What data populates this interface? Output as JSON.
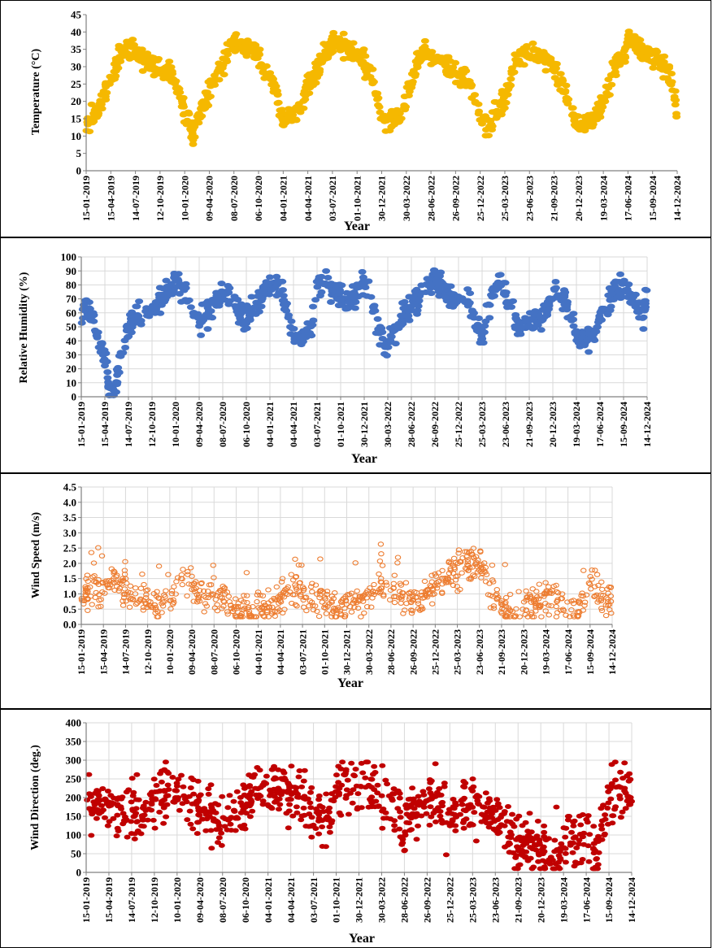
{
  "chart_data": [
    {
      "type": "scatter",
      "ylabel": "Temperature (°C)",
      "xlabel": "Year",
      "ylim": [
        0,
        45
      ],
      "yticks": [
        0,
        5,
        10,
        15,
        20,
        25,
        30,
        35,
        40,
        45
      ],
      "xlim": [
        "2019-01-15",
        "2024-12-14"
      ],
      "xtick_labels": [
        "15-01-2019",
        "15-04-2019",
        "14-07-2019",
        "12-10-2019",
        "10-01-2020",
        "09-04-2020",
        "08-07-2020",
        "06-10-2020",
        "04-01-2021",
        "04-04-2021",
        "03-07-2021",
        "01-10-2021",
        "30-12-2021",
        "30-03-2022",
        "28-06-2022",
        "26-09-2022",
        "25-12-2022",
        "25-03-2023",
        "23-06-2023",
        "21-09-2023",
        "20-12-2023",
        "19-03-2024",
        "17-06-2024",
        "15-09-2024",
        "14-12-2024"
      ],
      "grid": false,
      "color": "#f5b800",
      "series": [
        {
          "x": [
            "2019-01-15",
            "2019-03-01",
            "2019-04-15",
            "2019-05-20",
            "2019-06-15",
            "2019-07-14",
            "2019-08-15",
            "2019-09-15",
            "2019-10-12",
            "2019-11-15",
            "2019-12-15",
            "2020-01-10",
            "2020-02-10",
            "2020-03-10",
            "2020-04-09",
            "2020-05-15",
            "2020-06-15",
            "2020-07-08",
            "2020-08-10",
            "2020-09-10",
            "2020-10-06",
            "2020-11-05",
            "2020-12-05",
            "2021-01-04",
            "2021-02-15",
            "2021-03-15",
            "2021-04-04",
            "2021-05-10",
            "2021-06-10",
            "2021-07-03",
            "2021-08-05",
            "2021-09-05",
            "2021-10-01",
            "2021-11-01",
            "2021-12-01",
            "2021-12-30",
            "2022-02-01",
            "2022-03-01",
            "2022-03-30",
            "2022-05-01",
            "2022-06-01",
            "2022-06-28",
            "2022-08-01",
            "2022-09-01",
            "2022-09-26",
            "2022-11-01",
            "2022-12-01",
            "2022-12-25",
            "2023-02-01",
            "2023-03-01",
            "2023-03-25",
            "2023-05-01",
            "2023-06-01",
            "2023-06-23",
            "2023-08-01",
            "2023-09-01",
            "2023-09-21",
            "2023-11-01",
            "2023-12-01",
            "2023-12-20",
            "2024-02-01",
            "2024-03-01",
            "2024-03-19",
            "2024-05-01",
            "2024-06-01",
            "2024-06-17",
            "2024-08-01",
            "2024-09-01",
            "2024-09-15",
            "2024-11-01",
            "2024-12-01",
            "2024-12-14"
          ],
          "values": [
            14,
            18,
            26,
            33,
            36,
            34,
            32,
            31,
            30,
            28,
            24,
            17,
            10,
            18,
            22,
            29,
            34,
            37,
            36,
            35,
            33,
            28,
            25,
            14,
            16,
            20,
            24,
            30,
            34,
            37,
            36,
            35,
            33,
            31,
            27,
            15,
            14,
            15,
            20,
            30,
            34,
            33,
            31,
            30,
            29,
            27,
            23,
            15,
            13,
            18,
            20,
            31,
            34,
            34,
            33,
            32,
            29,
            22,
            16,
            13,
            14,
            17,
            20,
            30,
            34,
            38,
            35,
            33,
            33,
            30,
            24,
            14
          ]
        }
      ]
    },
    {
      "type": "scatter",
      "ylabel": "Relative Humidity (%)",
      "xlabel": "Year",
      "ylim": [
        0,
        100
      ],
      "yticks": [
        0,
        10,
        20,
        30,
        40,
        50,
        60,
        70,
        80,
        90,
        100
      ],
      "xlim": [
        "2019-01-15",
        "2024-12-14"
      ],
      "xtick_labels": [
        "15-01-2019",
        "15-04-2019",
        "14-07-2019",
        "12-10-2019",
        "10-01-2020",
        "09-04-2020",
        "08-07-2020",
        "06-10-2020",
        "04-01-2021",
        "04-04-2021",
        "03-07-2021",
        "01-10-2021",
        "30-12-2021",
        "30-03-2022",
        "28-06-2022",
        "26-09-2022",
        "25-12-2022",
        "25-03-2023",
        "23-06-2023",
        "21-09-2023",
        "20-12-2023",
        "19-03-2024",
        "17-06-2024",
        "15-09-2024",
        "14-12-2024"
      ],
      "grid": true,
      "color": "#4472c4",
      "series": [
        {
          "x": [
            "2019-01-15",
            "2019-02-15",
            "2019-03-15",
            "2019-04-15",
            "2019-05-01",
            "2019-05-20",
            "2019-06-10",
            "2019-07-14",
            "2019-08-15",
            "2019-09-15",
            "2019-10-12",
            "2019-11-15",
            "2019-12-15",
            "2020-01-10",
            "2020-02-10",
            "2020-03-10",
            "2020-04-09",
            "2020-05-15",
            "2020-06-15",
            "2020-07-08",
            "2020-08-10",
            "2020-09-10",
            "2020-10-06",
            "2020-11-05",
            "2020-12-05",
            "2021-01-04",
            "2021-02-15",
            "2021-03-15",
            "2021-04-04",
            "2021-05-10",
            "2021-06-10",
            "2021-07-03",
            "2021-08-05",
            "2021-09-05",
            "2021-10-01",
            "2021-11-01",
            "2021-12-01",
            "2021-12-30",
            "2022-02-01",
            "2022-03-01",
            "2022-03-30",
            "2022-05-01",
            "2022-06-01",
            "2022-06-28",
            "2022-08-01",
            "2022-09-01",
            "2022-09-26",
            "2022-11-01",
            "2022-12-01",
            "2022-12-25",
            "2023-02-01",
            "2023-03-01",
            "2023-03-25",
            "2023-05-01",
            "2023-06-01",
            "2023-06-23",
            "2023-08-01",
            "2023-09-01",
            "2023-09-21",
            "2023-11-01",
            "2023-12-01",
            "2023-12-20",
            "2024-02-01",
            "2024-03-01",
            "2024-03-19",
            "2024-05-01",
            "2024-06-01",
            "2024-06-17",
            "2024-08-01",
            "2024-09-01",
            "2024-09-15",
            "2024-11-01",
            "2024-12-01",
            "2024-12-14"
          ],
          "values": [
            60,
            65,
            45,
            30,
            3,
            3,
            20,
            50,
            60,
            58,
            62,
            70,
            78,
            82,
            75,
            65,
            55,
            60,
            68,
            74,
            70,
            60,
            55,
            62,
            70,
            82,
            76,
            60,
            40,
            42,
            50,
            78,
            82,
            75,
            70,
            68,
            75,
            85,
            65,
            45,
            35,
            50,
            60,
            65,
            72,
            80,
            85,
            78,
            70,
            68,
            72,
            55,
            45,
            70,
            85,
            75,
            55,
            48,
            52,
            55,
            65,
            80,
            72,
            55,
            45,
            40,
            42,
            60,
            72,
            78,
            80,
            65,
            58,
            80
          ]
        }
      ]
    },
    {
      "type": "scatter",
      "ylabel": "Wind Speed (m/s)",
      "xlabel": "Year",
      "ylim": [
        0,
        4.5
      ],
      "yticks": [
        0.0,
        0.5,
        1.0,
        1.5,
        2.0,
        2.5,
        3.0,
        3.5,
        4.0,
        4.5
      ],
      "xlim": [
        "2019-01-15",
        "2024-12-14"
      ],
      "xtick_labels": [
        "15-01-2019",
        "15-04-2019",
        "14-07-2019",
        "12-10-2019",
        "10-01-2020",
        "09-04-2020",
        "08-07-2020",
        "06-10-2020",
        "04-01-2021",
        "04-04-2021",
        "03-07-2021",
        "01-10-2021",
        "30-12-2021",
        "30-03-2022",
        "28-06-2022",
        "26-09-2022",
        "25-12-2022",
        "25-03-2023",
        "23-06-2023",
        "21-09-2023",
        "20-12-2023",
        "19-03-2024",
        "17-06-2024",
        "15-09-2024",
        "14-12-2024"
      ],
      "grid": true,
      "color": "#ed7d31",
      "marker": "open-circle",
      "series": [
        {
          "x": [
            "2019-01-15",
            "2019-03-01",
            "2019-04-15",
            "2019-06-01",
            "2019-07-14",
            "2019-09-01",
            "2019-10-12",
            "2019-12-01",
            "2020-01-10",
            "2020-03-01",
            "2020-04-09",
            "2020-06-01",
            "2020-07-08",
            "2020-09-01",
            "2020-10-06",
            "2020-12-01",
            "2021-01-04",
            "2021-03-01",
            "2021-04-04",
            "2021-06-01",
            "2021-07-03",
            "2021-09-01",
            "2021-10-01",
            "2021-12-01",
            "2021-12-30",
            "2022-03-01",
            "2022-03-30",
            "2022-06-01",
            "2022-06-28",
            "2022-09-01",
            "2022-09-26",
            "2022-12-01",
            "2022-12-25",
            "2023-03-01",
            "2023-03-25",
            "2023-05-01",
            "2023-06-23",
            "2023-08-01",
            "2023-09-21",
            "2023-12-01",
            "2023-12-20",
            "2024-03-01",
            "2024-03-19",
            "2024-06-01",
            "2024-06-17",
            "2024-08-01",
            "2024-09-15",
            "2024-11-01",
            "2024-12-14"
          ],
          "values": [
            0.8,
            1.2,
            1.0,
            1.5,
            1.1,
            0.9,
            0.7,
            0.6,
            0.8,
            1.5,
            1.2,
            0.9,
            1.0,
            0.8,
            0.5,
            0.4,
            0.5,
            0.6,
            0.9,
            1.2,
            1.0,
            0.8,
            0.7,
            0.5,
            0.6,
            0.7,
            1.0,
            1.2,
            1.1,
            0.8,
            0.7,
            1.0,
            1.3,
            1.5,
            1.8,
            2.0,
            2.2,
            1.2,
            0.5,
            0.4,
            0.6,
            0.8,
            1.0,
            0.6,
            0.5,
            0.4,
            1.5,
            0.8,
            0.9
          ]
        }
      ]
    },
    {
      "type": "scatter",
      "ylabel": "Wind Direction (deg.)",
      "xlabel": "Year",
      "ylim": [
        0,
        400
      ],
      "yticks": [
        0,
        50,
        100,
        150,
        200,
        250,
        300,
        350,
        400
      ],
      "xlim": [
        "2019-01-15",
        "2024-12-14"
      ],
      "xtick_labels": [
        "15-01-2019",
        "15-04-2019",
        "14-07-2019",
        "12-10-2019",
        "10-01-2020",
        "09-04-2020",
        "08-07-2020",
        "06-10-2020",
        "04-01-2021",
        "04-04-2021",
        "03-07-2021",
        "01-10-2021",
        "30-12-2021",
        "30-03-2022",
        "28-06-2022",
        "26-09-2022",
        "25-12-2022",
        "25-03-2023",
        "23-06-2023",
        "21-09-2023",
        "20-12-2023",
        "19-03-2024",
        "17-06-2024",
        "15-09-2024",
        "14-12-2024"
      ],
      "grid": true,
      "color": "#c00000",
      "series": [
        {
          "x": [
            "2019-01-15",
            "2019-03-01",
            "2019-04-15",
            "2019-06-01",
            "2019-07-14",
            "2019-09-01",
            "2019-10-12",
            "2019-12-01",
            "2020-01-10",
            "2020-03-01",
            "2020-04-09",
            "2020-06-01",
            "2020-07-08",
            "2020-09-01",
            "2020-10-06",
            "2020-12-01",
            "2021-01-04",
            "2021-03-01",
            "2021-04-04",
            "2021-06-01",
            "2021-07-03",
            "2021-09-01",
            "2021-10-01",
            "2021-12-01",
            "2021-12-30",
            "2022-03-01",
            "2022-03-30",
            "2022-06-01",
            "2022-06-28",
            "2022-09-01",
            "2022-09-26",
            "2022-12-01",
            "2022-12-25",
            "2023-03-01",
            "2023-03-25",
            "2023-05-01",
            "2023-06-23",
            "2023-08-01",
            "2023-09-21",
            "2023-12-01",
            "2023-12-20",
            "2024-03-01",
            "2024-03-19",
            "2024-06-01",
            "2024-06-17",
            "2024-08-01",
            "2024-09-15",
            "2024-11-01",
            "2024-12-14"
          ],
          "values": [
            200,
            180,
            190,
            170,
            160,
            150,
            200,
            210,
            200,
            190,
            180,
            150,
            120,
            170,
            180,
            220,
            230,
            220,
            210,
            190,
            150,
            160,
            220,
            230,
            220,
            210,
            200,
            150,
            130,
            180,
            190,
            170,
            160,
            180,
            170,
            160,
            150,
            120,
            80,
            70,
            60,
            70,
            80,
            90,
            80,
            60,
            200,
            220,
            230
          ]
        }
      ]
    }
  ]
}
